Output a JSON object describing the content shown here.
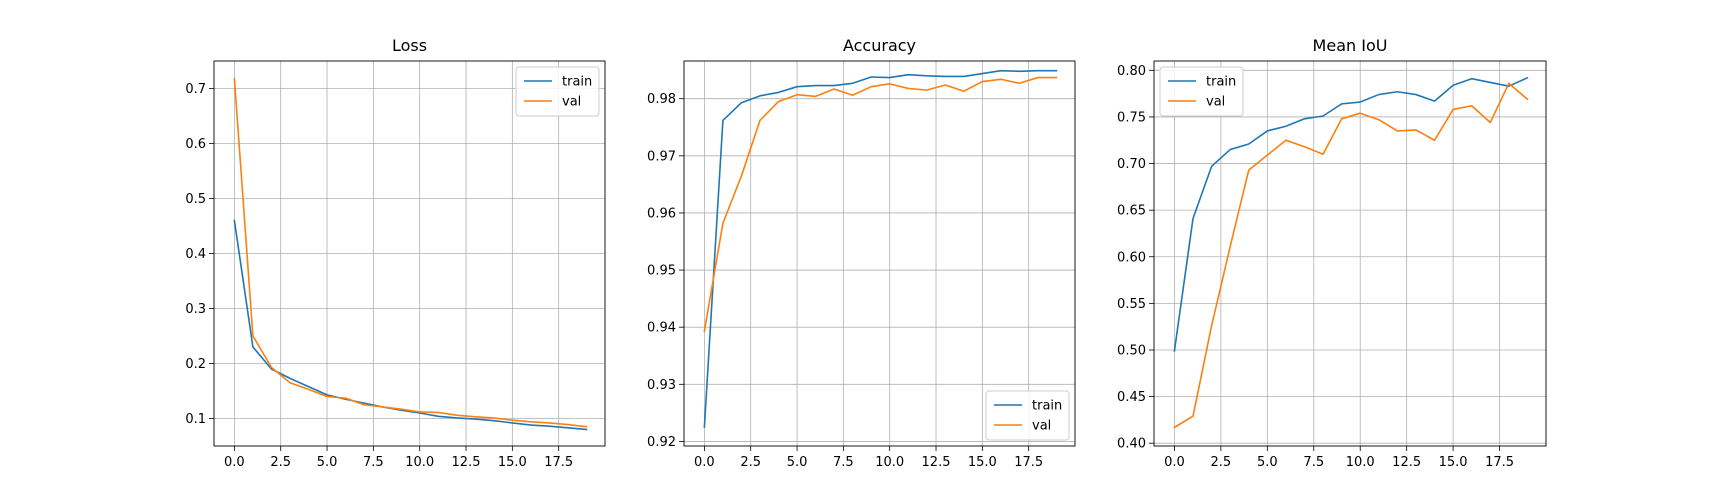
{
  "figure": {
    "colors": {
      "train": "#1f77b4",
      "val": "#ff7f0e",
      "grid": "#b0b0b0"
    }
  },
  "chart_data": [
    {
      "type": "line",
      "title": "Loss",
      "xlabel": "",
      "ylabel": "",
      "x": [
        0,
        1,
        2,
        3,
        4,
        5,
        6,
        7,
        8,
        9,
        10,
        11,
        12,
        13,
        14,
        15,
        16,
        17,
        18,
        19
      ],
      "xlim": [
        -1.1,
        20.0
      ],
      "ylim": [
        0.05,
        0.75
      ],
      "xticks": [
        0.0,
        2.5,
        5.0,
        7.5,
        10.0,
        12.5,
        15.0,
        17.5
      ],
      "xtick_labels": [
        "0.0",
        "2.5",
        "5.0",
        "7.5",
        "10.0",
        "12.5",
        "15.0",
        "17.5"
      ],
      "yticks": [
        0.1,
        0.2,
        0.3,
        0.4,
        0.5,
        0.6,
        0.7
      ],
      "ytick_labels": [
        "0.1",
        "0.2",
        "0.3",
        "0.4",
        "0.5",
        "0.6",
        "0.7"
      ],
      "grid": true,
      "legend": "upper right",
      "series": [
        {
          "name": "train",
          "color": "#1f77b4",
          "values": [
            0.46,
            0.23,
            0.19,
            0.173,
            0.158,
            0.143,
            0.135,
            0.128,
            0.121,
            0.115,
            0.11,
            0.104,
            0.101,
            0.099,
            0.096,
            0.092,
            0.088,
            0.086,
            0.083,
            0.08
          ]
        },
        {
          "name": "val",
          "color": "#ff7f0e",
          "values": [
            0.718,
            0.25,
            0.193,
            0.165,
            0.153,
            0.14,
            0.137,
            0.125,
            0.121,
            0.117,
            0.112,
            0.111,
            0.106,
            0.103,
            0.101,
            0.097,
            0.094,
            0.092,
            0.089,
            0.085
          ]
        }
      ]
    },
    {
      "type": "line",
      "title": "Accuracy",
      "xlabel": "",
      "ylabel": "",
      "x": [
        0,
        1,
        2,
        3,
        4,
        5,
        6,
        7,
        8,
        9,
        10,
        11,
        12,
        13,
        14,
        15,
        16,
        17,
        18,
        19
      ],
      "xlim": [
        -1.1,
        20.0
      ],
      "ylim": [
        0.9192,
        0.9866
      ],
      "xticks": [
        0.0,
        2.5,
        5.0,
        7.5,
        10.0,
        12.5,
        15.0,
        17.5
      ],
      "xtick_labels": [
        "0.0",
        "2.5",
        "5.0",
        "7.5",
        "10.0",
        "12.5",
        "15.0",
        "17.5"
      ],
      "yticks": [
        0.92,
        0.93,
        0.94,
        0.95,
        0.96,
        0.97,
        0.98
      ],
      "ytick_labels": [
        "0.92",
        "0.93",
        "0.94",
        "0.95",
        "0.96",
        "0.97",
        "0.98"
      ],
      "grid": true,
      "legend": "lower right",
      "series": [
        {
          "name": "train",
          "color": "#1f77b4",
          "values": [
            0.9225,
            0.9762,
            0.9793,
            0.9805,
            0.9811,
            0.9821,
            0.9823,
            0.9823,
            0.9827,
            0.9838,
            0.9837,
            0.9842,
            0.984,
            0.9839,
            0.9839,
            0.9844,
            0.9849,
            0.9848,
            0.9849,
            0.9849
          ]
        },
        {
          "name": "val",
          "color": "#ff7f0e",
          "values": [
            0.9393,
            0.9582,
            0.9665,
            0.9762,
            0.9795,
            0.9807,
            0.9804,
            0.9817,
            0.9806,
            0.9821,
            0.9826,
            0.9818,
            0.9815,
            0.9824,
            0.9813,
            0.983,
            0.9834,
            0.9827,
            0.9837,
            0.9837
          ]
        }
      ]
    },
    {
      "type": "line",
      "title": "Mean IoU",
      "xlabel": "",
      "ylabel": "",
      "x": [
        0,
        1,
        2,
        3,
        4,
        5,
        6,
        7,
        8,
        9,
        10,
        11,
        12,
        13,
        14,
        15,
        16,
        17,
        18,
        19
      ],
      "xlim": [
        -1.1,
        20.0
      ],
      "ylim": [
        0.397,
        0.81
      ],
      "xticks": [
        0.0,
        2.5,
        5.0,
        7.5,
        10.0,
        12.5,
        15.0,
        17.5
      ],
      "xtick_labels": [
        "0.0",
        "2.5",
        "5.0",
        "7.5",
        "10.0",
        "12.5",
        "15.0",
        "17.5"
      ],
      "yticks": [
        0.4,
        0.45,
        0.5,
        0.55,
        0.6,
        0.65,
        0.7,
        0.75,
        0.8
      ],
      "ytick_labels": [
        "0.40",
        "0.45",
        "0.50",
        "0.55",
        "0.60",
        "0.65",
        "0.70",
        "0.75",
        "0.80"
      ],
      "grid": true,
      "legend": "upper left",
      "series": [
        {
          "name": "train",
          "color": "#1f77b4",
          "values": [
            0.499,
            0.641,
            0.697,
            0.715,
            0.721,
            0.735,
            0.74,
            0.748,
            0.751,
            0.764,
            0.766,
            0.774,
            0.777,
            0.774,
            0.767,
            0.784,
            0.791,
            0.787,
            0.783,
            0.792
          ]
        },
        {
          "name": "val",
          "color": "#ff7f0e",
          "values": [
            0.417,
            0.429,
            0.526,
            0.611,
            0.693,
            0.709,
            0.725,
            0.718,
            0.71,
            0.748,
            0.754,
            0.747,
            0.735,
            0.736,
            0.725,
            0.758,
            0.762,
            0.744,
            0.786,
            0.769
          ]
        }
      ]
    }
  ]
}
